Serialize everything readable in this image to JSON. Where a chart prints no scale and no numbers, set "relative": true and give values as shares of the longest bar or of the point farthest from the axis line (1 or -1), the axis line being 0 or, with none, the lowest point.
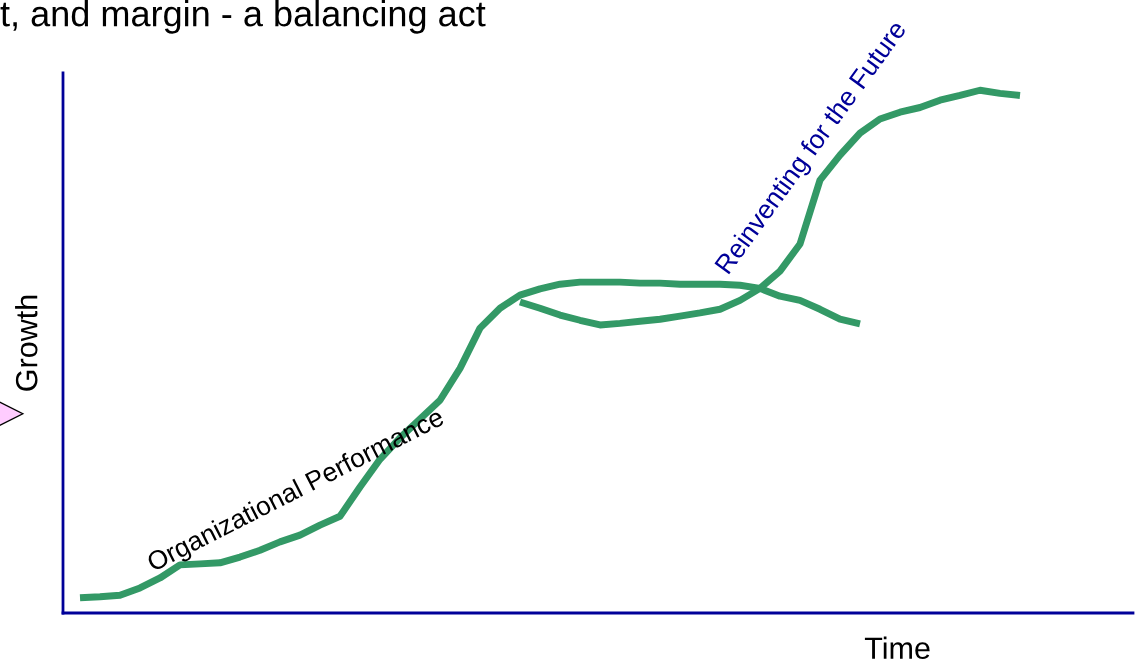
{
  "chart_data": {
    "type": "line",
    "relative": true,
    "title": "t, and margin - a balancing act",
    "xlabel": "Time",
    "ylabel": "Growth",
    "categories": [
      null,
      null,
      null,
      null,
      null,
      null,
      null,
      null,
      null,
      null,
      null,
      null,
      null,
      null,
      null,
      null,
      null,
      null,
      null,
      null,
      null,
      null,
      null,
      null,
      null,
      null,
      null,
      null,
      null,
      null,
      null,
      null,
      null,
      null,
      null,
      null,
      null,
      null,
      null,
      null,
      null,
      null,
      null,
      null,
      null,
      null,
      null,
      null
    ],
    "series": [
      {
        "color": "#339966",
        "values": [
          0.029,
          0.031,
          0.034,
          0.048,
          0.067,
          0.092,
          0.094,
          0.096,
          0.107,
          0.12,
          0.136,
          0.149,
          0.168,
          0.185,
          0.241,
          0.294,
          0.335,
          0.371,
          0.407,
          0.468,
          0.545,
          0.583,
          0.608,
          0.62,
          0.629,
          0.633,
          0.633,
          0.633,
          0.631,
          0.631,
          0.629,
          0.629,
          0.629,
          0.627,
          0.621,
          0.606,
          0.598,
          0.581,
          0.562,
          0.553,
          null,
          null,
          null,
          null,
          null,
          null,
          null,
          null
        ]
      },
      {
        "color": "#339966",
        "values": [
          null,
          null,
          null,
          null,
          null,
          null,
          null,
          null,
          null,
          null,
          null,
          null,
          null,
          null,
          null,
          null,
          null,
          null,
          null,
          null,
          null,
          null,
          0.595,
          0.583,
          0.57,
          0.56,
          0.551,
          0.554,
          0.558,
          0.562,
          0.568,
          0.574,
          0.581,
          0.598,
          0.621,
          0.654,
          0.706,
          0.828,
          0.876,
          0.918,
          0.945,
          0.958,
          0.967,
          0.981,
          0.99,
          1.0,
          0.994,
          0.99
        ]
      }
    ],
    "annotations": [
      "Organizational Performance",
      "Reinventing for the Future"
    ],
    "marker": "none",
    "line_style": "solid"
  }
}
